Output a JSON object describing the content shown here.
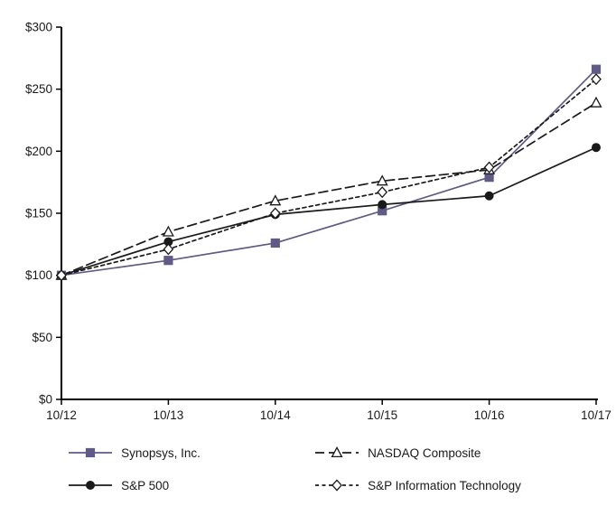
{
  "chart_data": {
    "type": "line",
    "title": "",
    "xlabel": "",
    "ylabel": "",
    "x": [
      "10/12",
      "10/13",
      "10/14",
      "10/15",
      "10/16",
      "10/17"
    ],
    "series": [
      {
        "name": "Synopsys, Inc.",
        "values": [
          100,
          112,
          126,
          152,
          179,
          266
        ],
        "color": "#5f5a86",
        "marker": "square",
        "marker_fill": "filled",
        "dash": "solid"
      },
      {
        "name": "NASDAQ Composite",
        "values": [
          100,
          135,
          160,
          176,
          185,
          239
        ],
        "color": "#1a1a1a",
        "marker": "triangle",
        "marker_fill": "open",
        "dash": "long-dash"
      },
      {
        "name": "S&P 500",
        "values": [
          100,
          127,
          149,
          157,
          164,
          203
        ],
        "color": "#1a1a1a",
        "marker": "circle",
        "marker_fill": "filled",
        "dash": "solid"
      },
      {
        "name": "S&P Information Technology",
        "values": [
          100,
          121,
          150,
          167,
          187,
          258
        ],
        "color": "#1a1a1a",
        "marker": "diamond",
        "marker_fill": "open",
        "dash": "short-dash"
      }
    ],
    "ylim": [
      0,
      300
    ],
    "ytick_step": 50,
    "ytick_labels": [
      "$0",
      "$50",
      "$100",
      "$150",
      "$200",
      "$250",
      "$300"
    ],
    "grid": false,
    "legend_position": "bottom",
    "axis_color": "#000000"
  }
}
